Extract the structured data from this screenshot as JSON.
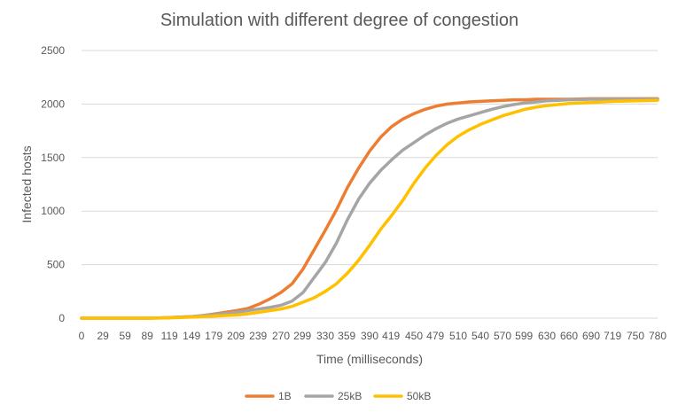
{
  "chart_data": {
    "type": "line",
    "title": "Simulation with different degree of congestion",
    "xlabel": "Time (milliseconds)",
    "ylabel": "Infected hosts",
    "ylim": [
      0,
      2500
    ],
    "yticks": [
      0,
      500,
      1000,
      1500,
      2000,
      2500
    ],
    "xticks": [
      0,
      29,
      59,
      89,
      119,
      149,
      179,
      209,
      239,
      270,
      299,
      330,
      359,
      390,
      419,
      450,
      479,
      510,
      540,
      570,
      599,
      630,
      660,
      690,
      719,
      750,
      780
    ],
    "grid": true,
    "legend_position": "bottom",
    "x": [
      0,
      30,
      60,
      90,
      105,
      120,
      135,
      150,
      165,
      180,
      195,
      210,
      225,
      240,
      255,
      270,
      285,
      300,
      315,
      330,
      345,
      360,
      375,
      390,
      405,
      420,
      435,
      450,
      465,
      480,
      495,
      510,
      525,
      540,
      555,
      570,
      585,
      600,
      615,
      630,
      645,
      660,
      690,
      720,
      750,
      780
    ],
    "series": [
      {
        "name": "1B",
        "color": "#ED7D31",
        "values": [
          0,
          0,
          0,
          0,
          2,
          5,
          10,
          15,
          25,
          40,
          55,
          70,
          90,
          130,
          180,
          240,
          320,
          460,
          640,
          820,
          1010,
          1220,
          1400,
          1560,
          1690,
          1790,
          1860,
          1910,
          1950,
          1980,
          2000,
          2010,
          2020,
          2025,
          2030,
          2035,
          2040,
          2040,
          2045,
          2045,
          2045,
          2045,
          2050,
          2050,
          2050,
          2050
        ]
      },
      {
        "name": "25kB",
        "color": "#A5A5A5",
        "values": [
          0,
          0,
          0,
          0,
          2,
          5,
          10,
          15,
          25,
          35,
          45,
          55,
          70,
          85,
          100,
          120,
          160,
          240,
          380,
          520,
          700,
          920,
          1110,
          1260,
          1380,
          1480,
          1570,
          1640,
          1710,
          1770,
          1820,
          1860,
          1890,
          1920,
          1950,
          1975,
          1995,
          2010,
          2020,
          2030,
          2035,
          2040,
          2045,
          2045,
          2045,
          2045
        ]
      },
      {
        "name": "50kB",
        "color": "#FFC000",
        "values": [
          0,
          0,
          0,
          0,
          1,
          3,
          6,
          10,
          15,
          20,
          25,
          30,
          40,
          55,
          70,
          85,
          110,
          150,
          190,
          250,
          320,
          420,
          540,
          680,
          830,
          960,
          1100,
          1260,
          1400,
          1520,
          1620,
          1700,
          1760,
          1810,
          1850,
          1890,
          1920,
          1950,
          1970,
          1985,
          1995,
          2005,
          2015,
          2025,
          2030,
          2035
        ]
      }
    ]
  }
}
